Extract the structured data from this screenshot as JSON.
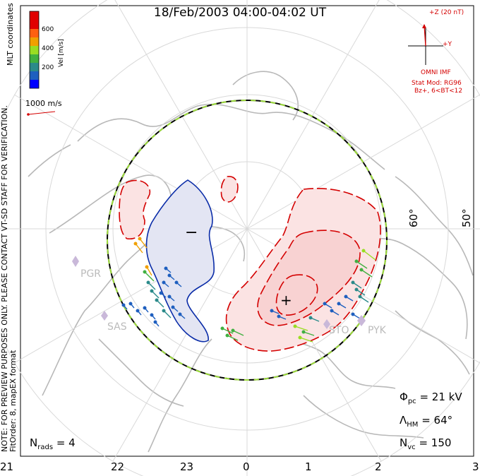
{
  "title": "18/Feb/2003 04:00-04:02 UT",
  "colorbar": {
    "label": "Vel [m/s]",
    "ticks": [
      "600",
      "400",
      "200"
    ],
    "colors": [
      "#0000ff",
      "#1e5fbf",
      "#2a8a8a",
      "#40b040",
      "#99dd22",
      "#f0a000",
      "#ff6010",
      "#e00000"
    ]
  },
  "coords_label": "MLT coordinates",
  "reference_vector": "1000 m/s",
  "imf": {
    "z_label": "+Z (20 nT)",
    "y_label": "+Y",
    "name": "OMNI IMF",
    "model": "Stat Mod: RG96",
    "condition": "Bz+, 6<BT<12"
  },
  "side_note": "NOTE: FOR PREVIEW PURPOSES ONLY. PLEASE CONTACT VT-SD STAFF FOR VERIFICATION.",
  "fit_order": "FitOrder: 8, mapEX format",
  "stats": {
    "phi_symbol": "Φ",
    "phi_sub": "pc",
    "phi_value": "= 21 kV",
    "lambda_symbol": "Λ",
    "lambda_sub": "HM",
    "lambda_value": "= 64°",
    "nvc_symbol": "N",
    "nvc_sub": "vc",
    "nvc_value": "= 150",
    "nrads_symbol": "N",
    "nrads_sub": "rads",
    "nrads_value": "= 4"
  },
  "mlt_labels": [
    "21",
    "22",
    "23",
    "0",
    "1",
    "2",
    "3"
  ],
  "lat_labels": [
    "60°",
    "50°"
  ],
  "sites": [
    "PGR",
    "SAS",
    "STO",
    "PYK"
  ],
  "potential_signs": {
    "min": "−",
    "max": "+"
  },
  "potential_colors": {
    "negative": "#0a2ca8",
    "positive": "#d40000",
    "hmb": "#000000"
  }
}
